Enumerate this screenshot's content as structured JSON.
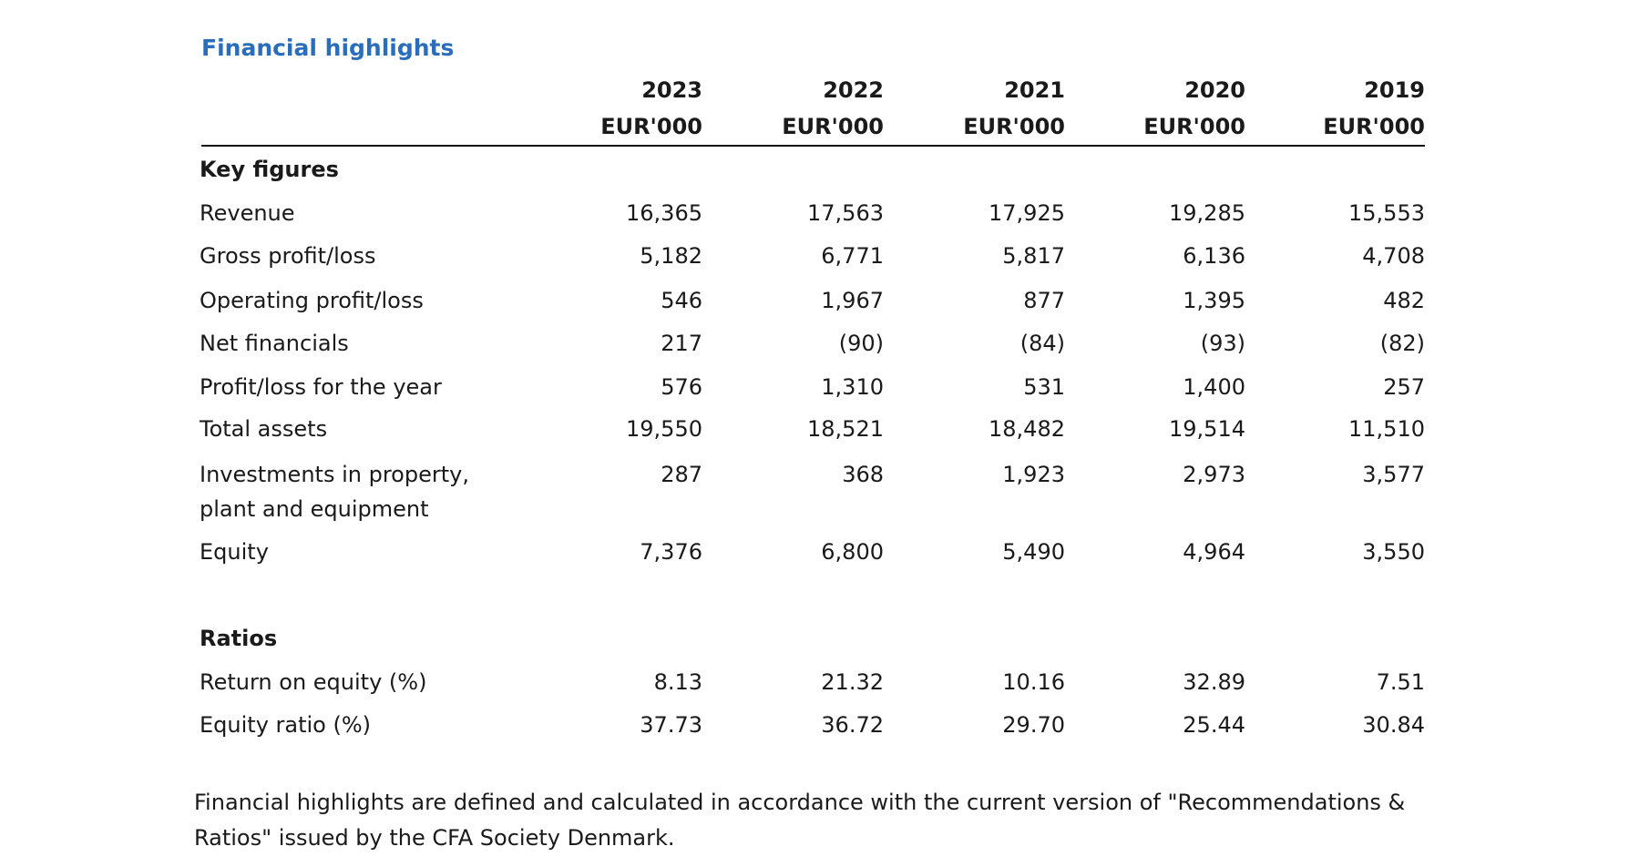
{
  "title": "Financial highlights",
  "columns": [
    {
      "year": "2023",
      "unit": "EUR'000"
    },
    {
      "year": "2022",
      "unit": "EUR'000"
    },
    {
      "year": "2021",
      "unit": "EUR'000"
    },
    {
      "year": "2020",
      "unit": "EUR'000"
    },
    {
      "year": "2019",
      "unit": "EUR'000"
    }
  ],
  "sections": [
    {
      "heading": "Key figures",
      "rows": [
        {
          "label": "Revenue",
          "values": [
            "16,365",
            "17,563",
            "17,925",
            "19,285",
            "15,553"
          ]
        },
        {
          "label": "Gross profit/loss",
          "values": [
            "5,182",
            "6,771",
            "5,817",
            "6,136",
            "4,708"
          ]
        },
        {
          "label": "Operating profit/loss",
          "values": [
            "546",
            "1,967",
            "877",
            "1,395",
            "482"
          ]
        },
        {
          "label": "Net financials",
          "values": [
            "217",
            "(90)",
            "(84)",
            "(93)",
            "(82)"
          ]
        },
        {
          "label": "Profit/loss for the year",
          "values": [
            "576",
            "1,310",
            "531",
            "1,400",
            "257"
          ]
        },
        {
          "label": "Total assets",
          "values": [
            "19,550",
            "18,521",
            "18,482",
            "19,514",
            "11,510"
          ]
        },
        {
          "label": "Investments in property, plant and equipment",
          "values": [
            "287",
            "368",
            "1,923",
            "2,973",
            "3,577"
          ]
        },
        {
          "label": "Equity",
          "values": [
            "7,376",
            "6,800",
            "5,490",
            "4,964",
            "3,550"
          ]
        }
      ]
    },
    {
      "heading": "Ratios",
      "rows": [
        {
          "label": "Return on equity (%)",
          "values": [
            "8.13",
            "21.32",
            "10.16",
            "32.89",
            "7.51"
          ]
        },
        {
          "label": "Equity ratio (%)",
          "values": [
            "37.73",
            "36.72",
            "29.70",
            "25.44",
            "30.84"
          ]
        }
      ]
    }
  ],
  "footnote": "Financial highlights are defined and calculated in accordance with the current version of \"Recommendations & Ratios\" issued by the CFA Society Denmark."
}
